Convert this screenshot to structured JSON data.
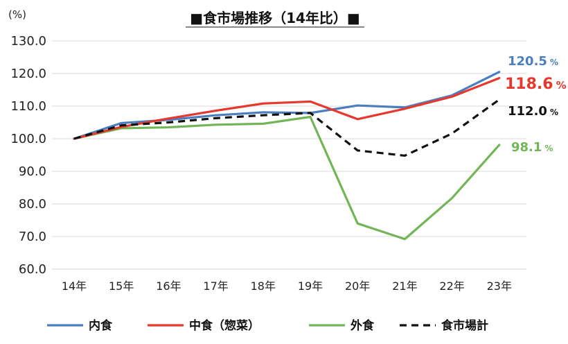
{
  "chart_data": {
    "type": "line",
    "title": "■食市場推移（14年比）■",
    "y_unit": "(%)",
    "categories": [
      "14年",
      "15年",
      "16年",
      "17年",
      "18年",
      "19年",
      "20年",
      "21年",
      "22年",
      "23年"
    ],
    "ylim": [
      60,
      130
    ],
    "yticks": [
      "60.0",
      "70.0",
      "80.0",
      "90.0",
      "100.0",
      "110.0",
      "120.0",
      "130.0"
    ],
    "grid": true,
    "legend_position": "bottom",
    "series": [
      {
        "name": "内食",
        "color": "#4a7ebf",
        "dash": "solid",
        "values": [
          100.0,
          104.8,
          105.8,
          107.2,
          108.1,
          107.9,
          110.2,
          109.6,
          113.3,
          120.5
        ],
        "end_label": "120.5",
        "end_unit": "%"
      },
      {
        "name": "中食（惣菜）",
        "color": "#e8372c",
        "dash": "solid",
        "values": [
          100.0,
          103.6,
          106.2,
          108.6,
          110.8,
          111.4,
          106.0,
          109.2,
          112.9,
          118.6
        ],
        "end_label": "118.6",
        "end_unit": "%"
      },
      {
        "name": "外食",
        "color": "#72b556",
        "dash": "solid",
        "values": [
          100.0,
          103.2,
          103.5,
          104.3,
          104.6,
          106.7,
          74.0,
          69.2,
          81.8,
          98.1
        ],
        "end_label": "98.1",
        "end_unit": "%"
      },
      {
        "name": "食市場計",
        "color": "#111111",
        "dash": "dashed",
        "values": [
          100.0,
          104.1,
          105.0,
          106.3,
          107.2,
          107.9,
          96.4,
          94.8,
          101.6,
          112.0
        ],
        "end_label": "112.0",
        "end_unit": "%"
      }
    ]
  }
}
